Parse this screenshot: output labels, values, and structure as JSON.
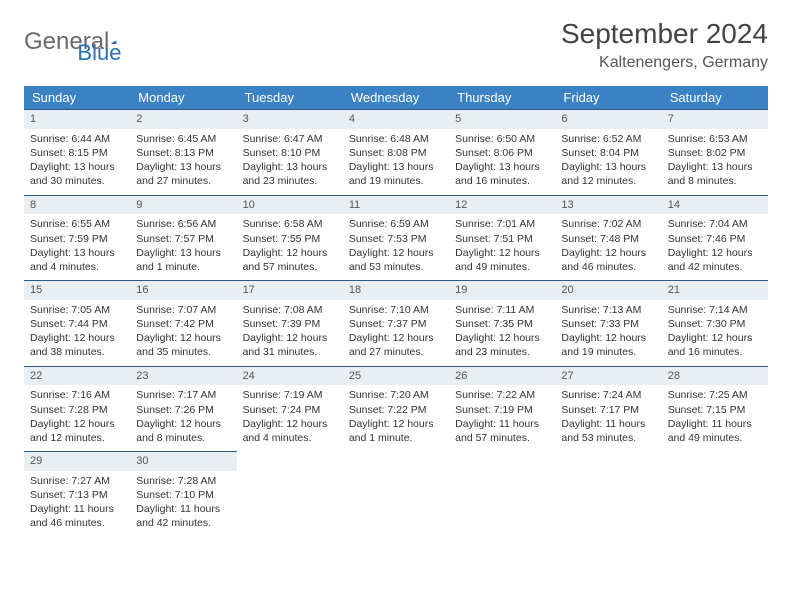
{
  "logo": {
    "text1": "General",
    "text2": "Blue"
  },
  "title": "September 2024",
  "location": "Kaltenengers, Germany",
  "colors": {
    "header_bg": "#3b82c4",
    "header_text": "#ffffff",
    "daynum_bg": "#e9eef2",
    "border": "#2a5b8a",
    "text": "#333333"
  },
  "weekdays": [
    "Sunday",
    "Monday",
    "Tuesday",
    "Wednesday",
    "Thursday",
    "Friday",
    "Saturday"
  ],
  "days": [
    {
      "n": "1",
      "sr": "Sunrise: 6:44 AM",
      "ss": "Sunset: 8:15 PM",
      "d1": "Daylight: 13 hours",
      "d2": "and 30 minutes."
    },
    {
      "n": "2",
      "sr": "Sunrise: 6:45 AM",
      "ss": "Sunset: 8:13 PM",
      "d1": "Daylight: 13 hours",
      "d2": "and 27 minutes."
    },
    {
      "n": "3",
      "sr": "Sunrise: 6:47 AM",
      "ss": "Sunset: 8:10 PM",
      "d1": "Daylight: 13 hours",
      "d2": "and 23 minutes."
    },
    {
      "n": "4",
      "sr": "Sunrise: 6:48 AM",
      "ss": "Sunset: 8:08 PM",
      "d1": "Daylight: 13 hours",
      "d2": "and 19 minutes."
    },
    {
      "n": "5",
      "sr": "Sunrise: 6:50 AM",
      "ss": "Sunset: 8:06 PM",
      "d1": "Daylight: 13 hours",
      "d2": "and 16 minutes."
    },
    {
      "n": "6",
      "sr": "Sunrise: 6:52 AM",
      "ss": "Sunset: 8:04 PM",
      "d1": "Daylight: 13 hours",
      "d2": "and 12 minutes."
    },
    {
      "n": "7",
      "sr": "Sunrise: 6:53 AM",
      "ss": "Sunset: 8:02 PM",
      "d1": "Daylight: 13 hours",
      "d2": "and 8 minutes."
    },
    {
      "n": "8",
      "sr": "Sunrise: 6:55 AM",
      "ss": "Sunset: 7:59 PM",
      "d1": "Daylight: 13 hours",
      "d2": "and 4 minutes."
    },
    {
      "n": "9",
      "sr": "Sunrise: 6:56 AM",
      "ss": "Sunset: 7:57 PM",
      "d1": "Daylight: 13 hours",
      "d2": "and 1 minute."
    },
    {
      "n": "10",
      "sr": "Sunrise: 6:58 AM",
      "ss": "Sunset: 7:55 PM",
      "d1": "Daylight: 12 hours",
      "d2": "and 57 minutes."
    },
    {
      "n": "11",
      "sr": "Sunrise: 6:59 AM",
      "ss": "Sunset: 7:53 PM",
      "d1": "Daylight: 12 hours",
      "d2": "and 53 minutes."
    },
    {
      "n": "12",
      "sr": "Sunrise: 7:01 AM",
      "ss": "Sunset: 7:51 PM",
      "d1": "Daylight: 12 hours",
      "d2": "and 49 minutes."
    },
    {
      "n": "13",
      "sr": "Sunrise: 7:02 AM",
      "ss": "Sunset: 7:48 PM",
      "d1": "Daylight: 12 hours",
      "d2": "and 46 minutes."
    },
    {
      "n": "14",
      "sr": "Sunrise: 7:04 AM",
      "ss": "Sunset: 7:46 PM",
      "d1": "Daylight: 12 hours",
      "d2": "and 42 minutes."
    },
    {
      "n": "15",
      "sr": "Sunrise: 7:05 AM",
      "ss": "Sunset: 7:44 PM",
      "d1": "Daylight: 12 hours",
      "d2": "and 38 minutes."
    },
    {
      "n": "16",
      "sr": "Sunrise: 7:07 AM",
      "ss": "Sunset: 7:42 PM",
      "d1": "Daylight: 12 hours",
      "d2": "and 35 minutes."
    },
    {
      "n": "17",
      "sr": "Sunrise: 7:08 AM",
      "ss": "Sunset: 7:39 PM",
      "d1": "Daylight: 12 hours",
      "d2": "and 31 minutes."
    },
    {
      "n": "18",
      "sr": "Sunrise: 7:10 AM",
      "ss": "Sunset: 7:37 PM",
      "d1": "Daylight: 12 hours",
      "d2": "and 27 minutes."
    },
    {
      "n": "19",
      "sr": "Sunrise: 7:11 AM",
      "ss": "Sunset: 7:35 PM",
      "d1": "Daylight: 12 hours",
      "d2": "and 23 minutes."
    },
    {
      "n": "20",
      "sr": "Sunrise: 7:13 AM",
      "ss": "Sunset: 7:33 PM",
      "d1": "Daylight: 12 hours",
      "d2": "and 19 minutes."
    },
    {
      "n": "21",
      "sr": "Sunrise: 7:14 AM",
      "ss": "Sunset: 7:30 PM",
      "d1": "Daylight: 12 hours",
      "d2": "and 16 minutes."
    },
    {
      "n": "22",
      "sr": "Sunrise: 7:16 AM",
      "ss": "Sunset: 7:28 PM",
      "d1": "Daylight: 12 hours",
      "d2": "and 12 minutes."
    },
    {
      "n": "23",
      "sr": "Sunrise: 7:17 AM",
      "ss": "Sunset: 7:26 PM",
      "d1": "Daylight: 12 hours",
      "d2": "and 8 minutes."
    },
    {
      "n": "24",
      "sr": "Sunrise: 7:19 AM",
      "ss": "Sunset: 7:24 PM",
      "d1": "Daylight: 12 hours",
      "d2": "and 4 minutes."
    },
    {
      "n": "25",
      "sr": "Sunrise: 7:20 AM",
      "ss": "Sunset: 7:22 PM",
      "d1": "Daylight: 12 hours",
      "d2": "and 1 minute."
    },
    {
      "n": "26",
      "sr": "Sunrise: 7:22 AM",
      "ss": "Sunset: 7:19 PM",
      "d1": "Daylight: 11 hours",
      "d2": "and 57 minutes."
    },
    {
      "n": "27",
      "sr": "Sunrise: 7:24 AM",
      "ss": "Sunset: 7:17 PM",
      "d1": "Daylight: 11 hours",
      "d2": "and 53 minutes."
    },
    {
      "n": "28",
      "sr": "Sunrise: 7:25 AM",
      "ss": "Sunset: 7:15 PM",
      "d1": "Daylight: 11 hours",
      "d2": "and 49 minutes."
    },
    {
      "n": "29",
      "sr": "Sunrise: 7:27 AM",
      "ss": "Sunset: 7:13 PM",
      "d1": "Daylight: 11 hours",
      "d2": "and 46 minutes."
    },
    {
      "n": "30",
      "sr": "Sunrise: 7:28 AM",
      "ss": "Sunset: 7:10 PM",
      "d1": "Daylight: 11 hours",
      "d2": "and 42 minutes."
    }
  ]
}
